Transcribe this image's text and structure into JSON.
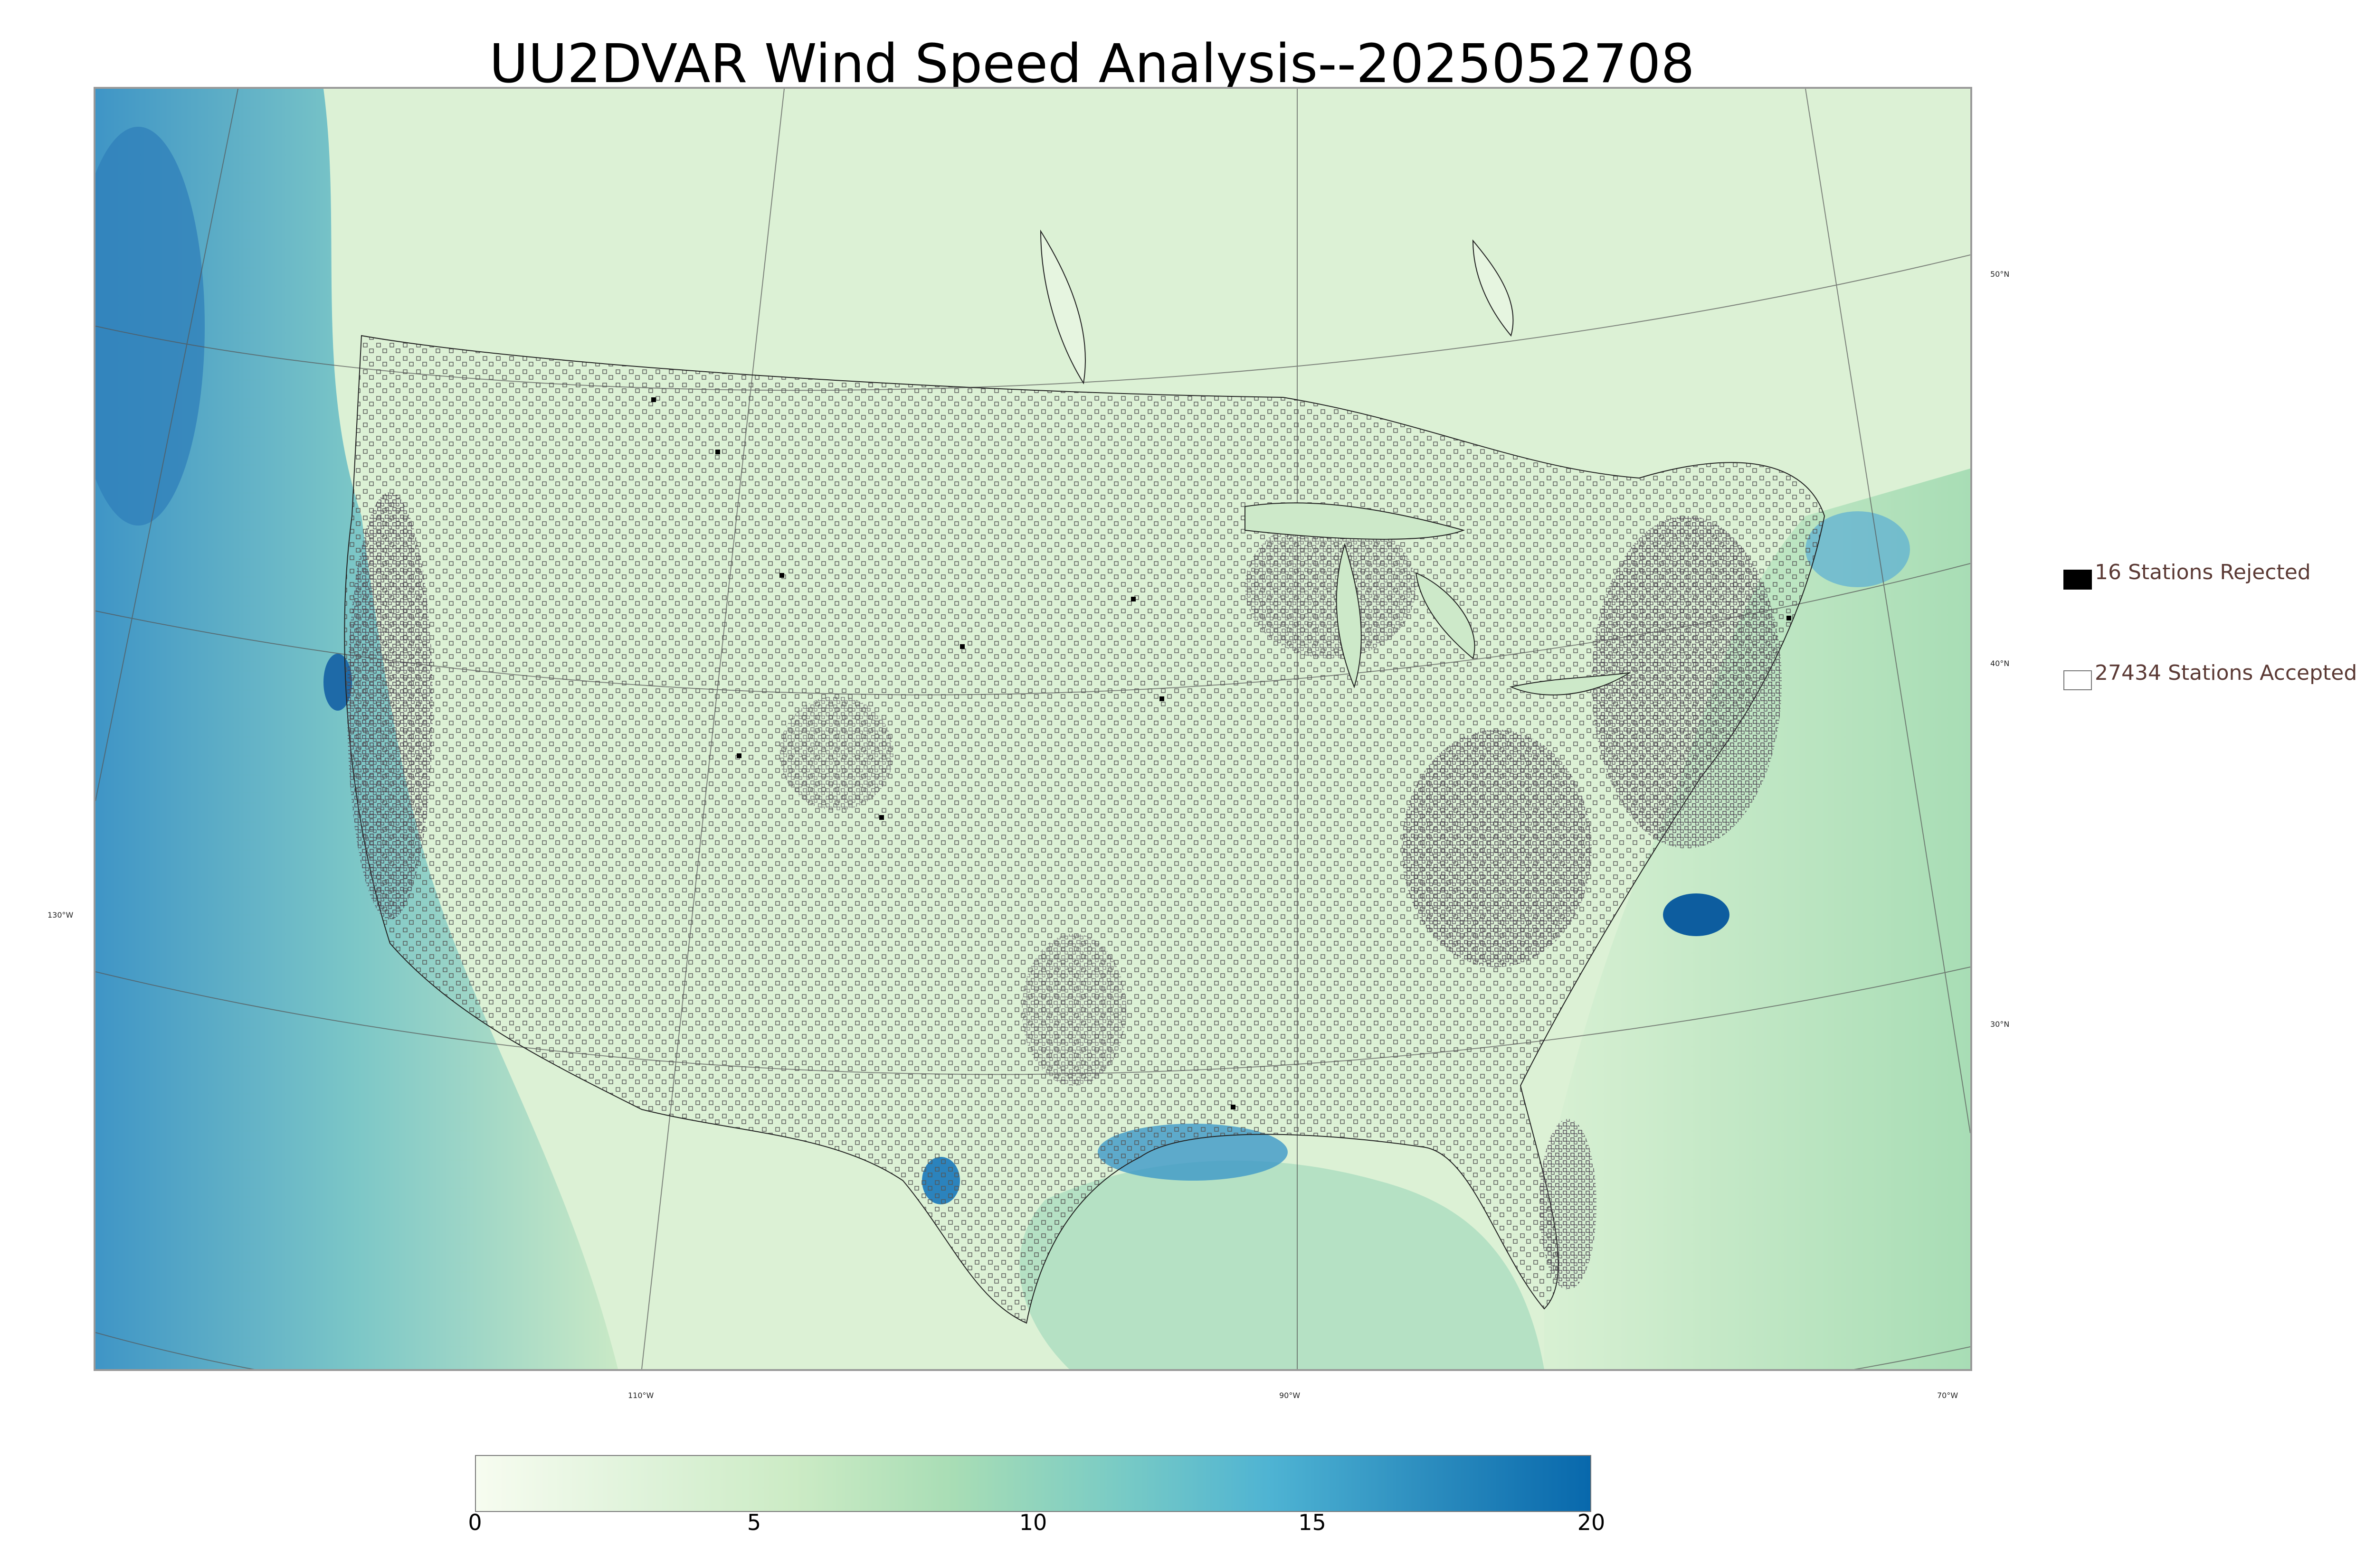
{
  "title": "UU2DVAR Wind Speed Analysis--2025052708",
  "map": {
    "lat_labels": [
      "50°N",
      "40°N",
      "30°N"
    ],
    "lon_labels": [
      "130°W",
      "110°W",
      "90°W",
      "70°W"
    ]
  },
  "legend": {
    "rejected": "16 Stations Rejected",
    "accepted": "27434 Stations Accepted",
    "rejected_color": "#000000",
    "accepted_color": "#ffffff"
  },
  "colorbar": {
    "min": 0,
    "max": 20,
    "ticks": [
      "0",
      "5",
      "10",
      "15",
      "20"
    ],
    "colors": [
      "#f7fcf0",
      "#e0f3db",
      "#ccebc5",
      "#a8ddb5",
      "#7bccc4",
      "#4eb3d3",
      "#2b8cbe",
      "#0868ac"
    ]
  },
  "stations": {
    "rejected": 16,
    "accepted": 27434
  }
}
